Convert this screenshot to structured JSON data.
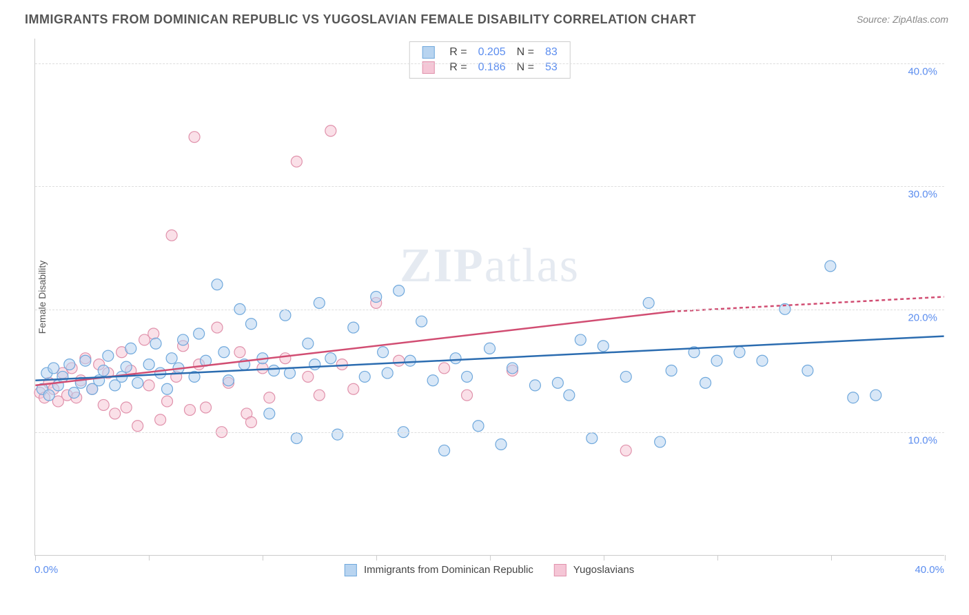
{
  "title": "IMMIGRANTS FROM DOMINICAN REPUBLIC VS YUGOSLAVIAN FEMALE DISABILITY CORRELATION CHART",
  "source_label": "Source: ",
  "source_value": "ZipAtlas.com",
  "ylabel": "Female Disability",
  "watermark": "ZIPatlas",
  "chart": {
    "type": "scatter",
    "xlim": [
      0,
      40
    ],
    "ylim": [
      0,
      42
    ],
    "xtick_positions": [
      0,
      5,
      10,
      15,
      20,
      25,
      30,
      35,
      40
    ],
    "ytick_positions": [
      10,
      20,
      30,
      40
    ],
    "ytick_labels": [
      "10.0%",
      "20.0%",
      "30.0%",
      "40.0%"
    ],
    "x_left_label": "0.0%",
    "x_right_label": "40.0%",
    "grid_color": "#dddddd",
    "axis_color": "#cccccc",
    "background_color": "#ffffff",
    "marker_radius": 8,
    "marker_opacity": 0.55,
    "series": [
      {
        "name": "Immigrants from Dominican Republic",
        "fill": "#b8d4f0",
        "stroke": "#6fa8dc",
        "line_color": "#2b6cb0",
        "line": {
          "x1": 0,
          "y1": 14.2,
          "x2": 40,
          "y2": 17.8
        },
        "R": "0.205",
        "N": "83",
        "points": [
          [
            0.3,
            13.5
          ],
          [
            0.5,
            14.8
          ],
          [
            0.6,
            13.0
          ],
          [
            0.8,
            15.2
          ],
          [
            1.0,
            13.8
          ],
          [
            1.2,
            14.5
          ],
          [
            1.5,
            15.5
          ],
          [
            1.7,
            13.2
          ],
          [
            2.0,
            14.0
          ],
          [
            2.2,
            15.8
          ],
          [
            2.5,
            13.5
          ],
          [
            2.8,
            14.2
          ],
          [
            3.0,
            15.0
          ],
          [
            3.2,
            16.2
          ],
          [
            3.5,
            13.8
          ],
          [
            3.8,
            14.5
          ],
          [
            4.0,
            15.3
          ],
          [
            4.2,
            16.8
          ],
          [
            4.5,
            14.0
          ],
          [
            5.0,
            15.5
          ],
          [
            5.3,
            17.2
          ],
          [
            5.5,
            14.8
          ],
          [
            5.8,
            13.5
          ],
          [
            6.0,
            16.0
          ],
          [
            6.3,
            15.2
          ],
          [
            6.5,
            17.5
          ],
          [
            7.0,
            14.5
          ],
          [
            7.2,
            18.0
          ],
          [
            7.5,
            15.8
          ],
          [
            8.0,
            22.0
          ],
          [
            8.3,
            16.5
          ],
          [
            8.5,
            14.2
          ],
          [
            9.0,
            20.0
          ],
          [
            9.2,
            15.5
          ],
          [
            9.5,
            18.8
          ],
          [
            10.0,
            16.0
          ],
          [
            10.3,
            11.5
          ],
          [
            10.5,
            15.0
          ],
          [
            11.0,
            19.5
          ],
          [
            11.2,
            14.8
          ],
          [
            11.5,
            9.5
          ],
          [
            12.0,
            17.2
          ],
          [
            12.3,
            15.5
          ],
          [
            12.5,
            20.5
          ],
          [
            13.0,
            16.0
          ],
          [
            13.3,
            9.8
          ],
          [
            14.0,
            18.5
          ],
          [
            14.5,
            14.5
          ],
          [
            15.0,
            21.0
          ],
          [
            15.3,
            16.5
          ],
          [
            15.5,
            14.8
          ],
          [
            16.0,
            21.5
          ],
          [
            16.2,
            10.0
          ],
          [
            16.5,
            15.8
          ],
          [
            17.0,
            19.0
          ],
          [
            17.5,
            14.2
          ],
          [
            18.0,
            8.5
          ],
          [
            18.5,
            16.0
          ],
          [
            19.0,
            14.5
          ],
          [
            19.5,
            10.5
          ],
          [
            20.0,
            16.8
          ],
          [
            20.5,
            9.0
          ],
          [
            21.0,
            15.2
          ],
          [
            22.0,
            13.8
          ],
          [
            23.0,
            14.0
          ],
          [
            23.5,
            13.0
          ],
          [
            24.0,
            17.5
          ],
          [
            24.5,
            9.5
          ],
          [
            25.0,
            17.0
          ],
          [
            26.0,
            14.5
          ],
          [
            27.0,
            20.5
          ],
          [
            27.5,
            9.2
          ],
          [
            28.0,
            15.0
          ],
          [
            29.0,
            16.5
          ],
          [
            29.5,
            14.0
          ],
          [
            30.0,
            15.8
          ],
          [
            31.0,
            16.5
          ],
          [
            32.0,
            15.8
          ],
          [
            33.0,
            20.0
          ],
          [
            34.0,
            15.0
          ],
          [
            35.0,
            23.5
          ],
          [
            36.0,
            12.8
          ],
          [
            37.0,
            13.0
          ]
        ]
      },
      {
        "name": "Yugoslavians",
        "fill": "#f5c6d6",
        "stroke": "#e091ab",
        "line_color": "#d14d72",
        "line": {
          "x1": 0,
          "y1": 13.8,
          "x2": 28,
          "y2": 19.8
        },
        "line_ext": {
          "x1": 28,
          "y1": 19.8,
          "x2": 40,
          "y2": 21.0
        },
        "R": "0.186",
        "N": "53",
        "points": [
          [
            0.2,
            13.2
          ],
          [
            0.4,
            12.8
          ],
          [
            0.6,
            14.0
          ],
          [
            0.8,
            13.5
          ],
          [
            1.0,
            12.5
          ],
          [
            1.2,
            14.8
          ],
          [
            1.4,
            13.0
          ],
          [
            1.6,
            15.2
          ],
          [
            1.8,
            12.8
          ],
          [
            2.0,
            14.2
          ],
          [
            2.2,
            16.0
          ],
          [
            2.5,
            13.5
          ],
          [
            2.8,
            15.5
          ],
          [
            3.0,
            12.2
          ],
          [
            3.2,
            14.8
          ],
          [
            3.5,
            11.5
          ],
          [
            3.8,
            16.5
          ],
          [
            4.0,
            12.0
          ],
          [
            4.2,
            15.0
          ],
          [
            4.5,
            10.5
          ],
          [
            4.8,
            17.5
          ],
          [
            5.0,
            13.8
          ],
          [
            5.2,
            18.0
          ],
          [
            5.5,
            11.0
          ],
          [
            5.8,
            12.5
          ],
          [
            6.0,
            26.0
          ],
          [
            6.2,
            14.5
          ],
          [
            6.5,
            17.0
          ],
          [
            6.8,
            11.8
          ],
          [
            7.0,
            34.0
          ],
          [
            7.2,
            15.5
          ],
          [
            7.5,
            12.0
          ],
          [
            8.0,
            18.5
          ],
          [
            8.2,
            10.0
          ],
          [
            8.5,
            14.0
          ],
          [
            9.0,
            16.5
          ],
          [
            9.3,
            11.5
          ],
          [
            9.5,
            10.8
          ],
          [
            10.0,
            15.2
          ],
          [
            10.3,
            12.8
          ],
          [
            11.0,
            16.0
          ],
          [
            11.5,
            32.0
          ],
          [
            12.0,
            14.5
          ],
          [
            12.5,
            13.0
          ],
          [
            13.0,
            34.5
          ],
          [
            13.5,
            15.5
          ],
          [
            14.0,
            13.5
          ],
          [
            15.0,
            20.5
          ],
          [
            16.0,
            15.8
          ],
          [
            18.0,
            15.2
          ],
          [
            19.0,
            13.0
          ],
          [
            26.0,
            8.5
          ],
          [
            21.0,
            15.0
          ]
        ]
      }
    ]
  },
  "bottom_legend": {
    "item1": "Immigrants from Dominican Republic",
    "item2": "Yugoslavians"
  },
  "stat_legend": {
    "r_label": "R =",
    "n_label": "N ="
  }
}
